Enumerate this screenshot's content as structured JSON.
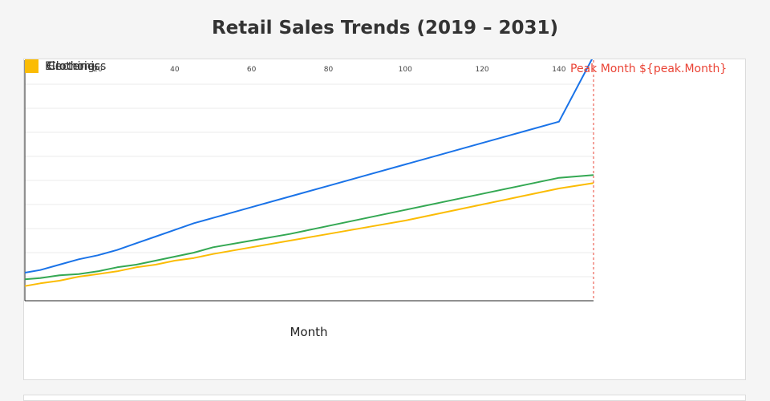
{
  "title": "Retail Sales Trends (2019 – 2031)",
  "colors": {
    "electronics": "#1a73e8",
    "groceries": "#fbbc04",
    "clothing": "#34a853",
    "peak_line": "#ea4335",
    "grid": "#ebebeb"
  },
  "peak_annotation": "Peak Month ${peak.Month}",
  "chart_data": {
    "type": "line",
    "title": "Retail Sales Trends (2019 – 2031)",
    "xlabel": "Month",
    "ylabel": "",
    "x_ticks": [
      20,
      40,
      60,
      80,
      100,
      120,
      140
    ],
    "xlim": [
      1,
      149
    ],
    "ylim": [
      0,
      180
    ],
    "grid": true,
    "legend_position": "top-left",
    "legend": [
      "Electronics",
      "Groceries",
      "Clothing"
    ],
    "peak_x": 149,
    "series": [
      {
        "name": "Electronics",
        "color": "#1a73e8",
        "x": [
          1,
          5,
          10,
          15,
          20,
          25,
          30,
          35,
          40,
          45,
          50,
          60,
          70,
          80,
          90,
          100,
          110,
          120,
          130,
          140,
          149
        ],
        "y": [
          21,
          23,
          27,
          31,
          34,
          38,
          43,
          48,
          53,
          58,
          62,
          70,
          78,
          86,
          94,
          102,
          110,
          118,
          126,
          134,
          183
        ]
      },
      {
        "name": "Groceries",
        "color": "#fbbc04",
        "x": [
          1,
          5,
          10,
          15,
          20,
          25,
          30,
          35,
          40,
          45,
          50,
          60,
          70,
          80,
          90,
          100,
          110,
          120,
          130,
          140,
          149
        ],
        "y": [
          11,
          13,
          15,
          18,
          20,
          22,
          25,
          27,
          30,
          32,
          35,
          40,
          45,
          50,
          55,
          60,
          66,
          72,
          78,
          84,
          88
        ]
      },
      {
        "name": "Clothing",
        "color": "#34a853",
        "x": [
          1,
          5,
          10,
          15,
          20,
          25,
          30,
          35,
          40,
          45,
          50,
          60,
          70,
          80,
          90,
          100,
          110,
          120,
          130,
          140,
          149
        ],
        "y": [
          16,
          17,
          19,
          20,
          22,
          25,
          27,
          30,
          33,
          36,
          40,
          45,
          50,
          56,
          62,
          68,
          74,
          80,
          86,
          92,
          94
        ]
      }
    ]
  }
}
